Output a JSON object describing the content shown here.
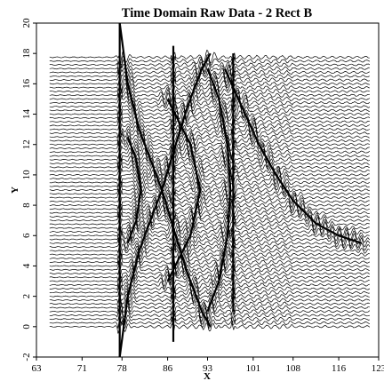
{
  "chart_data": {
    "type": "line",
    "title": "Time Domain Raw Data  -  2 Rect B",
    "xlabel": "X",
    "ylabel": "Y",
    "xlim": [
      63,
      123
    ],
    "ylim": [
      -2,
      20
    ],
    "x_ticks": [
      "63",
      "71",
      "78",
      "86",
      "93",
      "101",
      "108",
      "116",
      "123"
    ],
    "y_ticks": [
      "-2",
      "0",
      "2",
      "4",
      "6",
      "8",
      "10",
      "12",
      "14",
      "16",
      "18",
      "20"
    ],
    "grid": false,
    "legend": "none",
    "stacked_waveforms": {
      "trace_count": 72,
      "y_first": 0,
      "y_last": 18,
      "x_start": 65.3,
      "x_end": 121.5,
      "trace_spacing": 0.25
    },
    "reflection_curves": [
      {
        "name": "",
        "points": [
          [
            77.6,
            20
          ],
          [
            79,
            16
          ],
          [
            81,
            13
          ],
          [
            83.5,
            10.5
          ],
          [
            85,
            9
          ],
          [
            87,
            6.5
          ],
          [
            89.5,
            3.5
          ],
          [
            92,
            1
          ],
          [
            93.5,
            0
          ]
        ]
      },
      {
        "name": "",
        "points": [
          [
            77.6,
            -2
          ],
          [
            79,
            2
          ],
          [
            81,
            5
          ],
          [
            83.5,
            7.5
          ],
          [
            85,
            9
          ],
          [
            87,
            11.5
          ],
          [
            89.5,
            14.5
          ],
          [
            92,
            17
          ],
          [
            93.5,
            18
          ]
        ]
      },
      {
        "name": "",
        "points": [
          [
            86,
            15
          ],
          [
            88,
            13.5
          ],
          [
            90,
            12
          ],
          [
            91.7,
            9
          ],
          [
            90,
            6
          ],
          [
            88,
            4.5
          ],
          [
            86,
            3
          ]
        ]
      },
      {
        "name": "",
        "points": [
          [
            79,
            12.5
          ],
          [
            80.5,
            11
          ],
          [
            81.3,
            9
          ],
          [
            80.5,
            7
          ],
          [
            79,
            5.5
          ]
        ]
      },
      {
        "name": "",
        "points": [
          [
            93,
            17
          ],
          [
            95,
            15
          ],
          [
            96.5,
            12
          ],
          [
            97,
            9
          ],
          [
            96.5,
            6
          ],
          [
            95,
            3
          ],
          [
            93,
            1
          ]
        ]
      },
      {
        "name": "",
        "points": [
          [
            96,
            17
          ],
          [
            99,
            14.5
          ],
          [
            102,
            12
          ],
          [
            105,
            10
          ],
          [
            108,
            8.3
          ],
          [
            112,
            6.8
          ],
          [
            116,
            6
          ],
          [
            120,
            5.5
          ]
        ]
      }
    ],
    "source_lines": [
      {
        "name": "",
        "x": 77.6,
        "y_range": [
          -2,
          20
        ]
      },
      {
        "name": "",
        "x": 87,
        "y_range": [
          -1,
          18.5
        ]
      },
      {
        "name": "",
        "x": 97.5,
        "y_range": [
          1,
          18
        ]
      }
    ]
  },
  "colors": {
    "background": "#ffffff",
    "trace": "#000000",
    "axis": "#000000"
  }
}
